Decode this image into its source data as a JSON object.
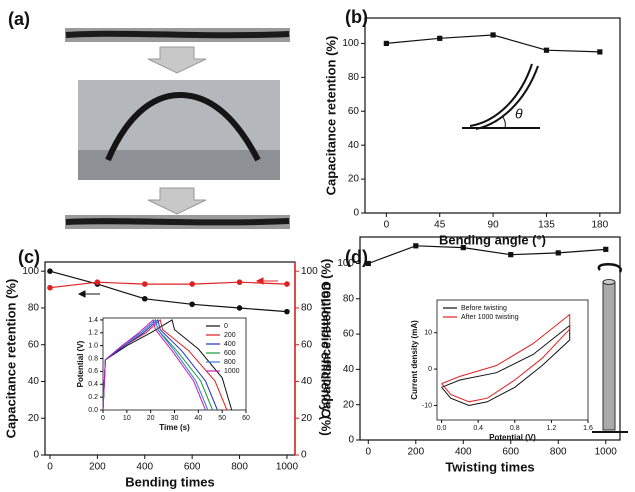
{
  "panel_a": {
    "label": "(a)"
  },
  "chart_data": [
    {
      "type": "line",
      "label": "(b)",
      "xlabel": "Bending angle (°)",
      "ylabel": "Capacitance retention (%)",
      "x": [
        0,
        45,
        90,
        135,
        180
      ],
      "xlim": [
        -18,
        197
      ],
      "xticks": [
        0,
        45,
        90,
        135,
        180
      ],
      "ylim": [
        0,
        115
      ],
      "yticks": [
        0,
        20,
        40,
        60,
        80,
        100
      ],
      "marker": "square",
      "annotation": "θ",
      "series": [
        {
          "color": "#111111",
          "values": [
            100,
            103,
            105,
            96,
            95
          ]
        }
      ]
    },
    {
      "type": "line",
      "label": "(c)",
      "xlabel": "Bending times",
      "ylabel": "Capacitance retention (%)",
      "y2label": "Coulombic efficiency (%)",
      "y2color": "#e02020",
      "x": [
        0,
        200,
        400,
        600,
        800,
        1000
      ],
      "xlim": [
        -21,
        1034
      ],
      "xticks": [
        0,
        200,
        400,
        600,
        800,
        1000
      ],
      "ylim": [
        0,
        105
      ],
      "yticks": [
        0,
        20,
        40,
        60,
        80,
        100
      ],
      "y2lim": [
        0,
        105
      ],
      "y2ticks": [
        0,
        20,
        40,
        60,
        80,
        100
      ],
      "marker": "circle",
      "series": [
        {
          "color": "#111111",
          "values": [
            100,
            93,
            85,
            82,
            80,
            78
          ]
        },
        {
          "color": "#e02020",
          "axis": "y2",
          "values": [
            91,
            94,
            93,
            93,
            94,
            93
          ]
        }
      ],
      "inset": {
        "type": "line",
        "xlabel": "Time (s)",
        "ylabel": "Potential (V)",
        "xlim": [
          0,
          60
        ],
        "xticks": [
          0,
          10,
          20,
          30,
          40,
          50,
          60
        ],
        "ylim": [
          0,
          1.43
        ],
        "yticks": [
          {
            "value": 0,
            "label": "0.0"
          },
          0.2,
          0.4,
          0.6,
          0.8,
          {
            "value": 1,
            "label": "1.0"
          },
          1.2,
          1.4
        ],
        "legend": "upper-right",
        "series": [
          {
            "name": "0",
            "color": "#111111",
            "x": [
              0,
              1,
              10,
              20,
              29,
              30,
              40,
              50,
              54
            ],
            "values": [
              0,
              0.78,
              1.0,
              1.2,
              1.4,
              1.25,
              0.95,
              0.5,
              0
            ]
          },
          {
            "name": "200",
            "color": "#e02020",
            "x": [
              0,
              1,
              9,
              18,
              24,
              25,
              36,
              47,
              52
            ],
            "values": [
              0,
              0.78,
              1.0,
              1.2,
              1.4,
              1.25,
              0.92,
              0.45,
              0
            ]
          },
          {
            "name": "400",
            "color": "#2030d0",
            "x": [
              0,
              1,
              9,
              17,
              23,
              24,
              33,
              43,
              48
            ],
            "values": [
              0,
              0.78,
              1.0,
              1.2,
              1.4,
              1.25,
              0.92,
              0.45,
              0
            ]
          },
          {
            "name": "600",
            "color": "#1a9a3a",
            "x": [
              0,
              1,
              8,
              16,
              22,
              23,
              31,
              41,
              46
            ],
            "values": [
              0,
              0.78,
              1.0,
              1.2,
              1.4,
              1.25,
              0.92,
              0.45,
              0
            ]
          },
          {
            "name": "800",
            "color": "#3a7ad0",
            "x": [
              0,
              1,
              8,
              16,
              22,
              23,
              30,
              39,
              44
            ],
            "values": [
              0,
              0.78,
              1.0,
              1.2,
              1.4,
              1.25,
              0.92,
              0.45,
              0
            ]
          },
          {
            "name": "1000",
            "color": "#c020c0",
            "x": [
              0,
              1,
              8,
              15,
              21,
              22,
              29,
              38,
              43
            ],
            "values": [
              0,
              0.78,
              1.0,
              1.2,
              1.4,
              1.25,
              0.92,
              0.45,
              0
            ]
          }
        ]
      }
    },
    {
      "type": "line",
      "label": "(d)",
      "xlabel": "Twisting times",
      "ylabel": "Capacitance retention (%)",
      "x": [
        0,
        200,
        400,
        600,
        800,
        1000
      ],
      "xlim": [
        -35,
        1060
      ],
      "xticks": [
        0,
        200,
        400,
        600,
        800,
        1000
      ],
      "ylim": [
        0,
        115
      ],
      "yticks": [
        0,
        20,
        40,
        60,
        80,
        100
      ],
      "marker": "square",
      "series": [
        {
          "color": "#111111",
          "values": [
            100,
            110,
            109,
            105,
            106,
            108
          ]
        }
      ],
      "inset": {
        "type": "line",
        "xlabel": "Potential (V)",
        "ylabel": "Current density (mA)",
        "xlim": [
          -0.05,
          1.6
        ],
        "xticks": [
          {
            "value": 0,
            "label": "0.0"
          },
          0.4,
          0.8,
          1.2,
          1.6
        ],
        "ylim": [
          -14,
          19
        ],
        "yticks": [
          -10,
          0,
          10
        ],
        "legend": "upper-left",
        "series": [
          {
            "name": "Before twisting",
            "color": "#111111",
            "x": [
              0.0,
              0.1,
              0.3,
              0.5,
              0.8,
              1.1,
              1.4,
              1.4,
              1.0,
              0.6,
              0.2,
              0.0
            ],
            "values": [
              -5,
              -8,
              -10,
              -9,
              -5,
              1,
              8,
              12,
              4,
              -1,
              -3,
              -5
            ]
          },
          {
            "name": "After 1000 twisting",
            "color": "#e02020",
            "x": [
              0.0,
              0.1,
              0.3,
              0.5,
              0.8,
              1.1,
              1.4,
              1.4,
              1.0,
              0.6,
              0.2,
              0.0
            ],
            "values": [
              -4,
              -7,
              -9,
              -8,
              -3,
              3,
              11,
              15,
              7,
              1,
              -2,
              -4
            ]
          }
        ]
      }
    }
  ]
}
